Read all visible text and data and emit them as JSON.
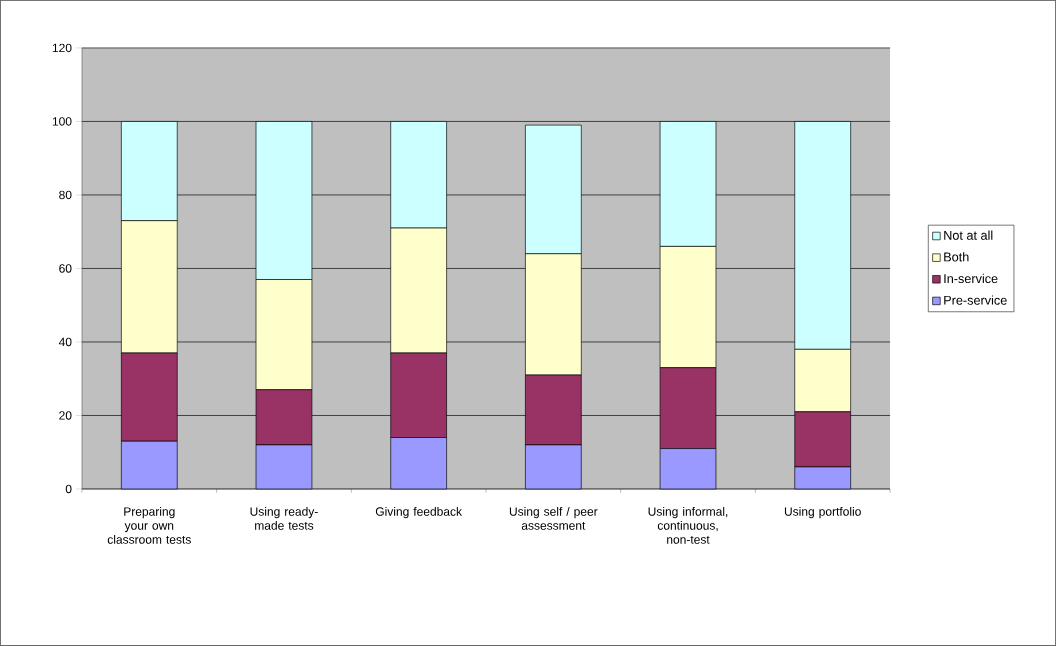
{
  "chart_data": {
    "type": "bar",
    "stacked": true,
    "categories": [
      "Preparing your own classroom tests",
      "Using ready-made tests",
      "Giving feedback",
      "Using self / peer assessment",
      "Using informal, continuous, non-test",
      "Using portfolio"
    ],
    "series": [
      {
        "name": "Pre-service",
        "color": "#9999ff",
        "values": [
          13,
          12,
          14,
          12,
          11,
          6
        ]
      },
      {
        "name": "In-service",
        "color": "#993366",
        "values": [
          24,
          15,
          23,
          19,
          22,
          15
        ]
      },
      {
        "name": "Both",
        "color": "#ffffcc",
        "values": [
          36,
          30,
          34,
          33,
          33,
          17
        ]
      },
      {
        "name": "Not at all",
        "color": "#ccffff",
        "values": [
          27,
          43,
          29,
          35,
          34,
          62
        ]
      }
    ],
    "ylim": [
      0,
      120
    ],
    "yticks": [
      0,
      20,
      40,
      60,
      80,
      100,
      120
    ],
    "grid": "y",
    "legend": "right"
  }
}
